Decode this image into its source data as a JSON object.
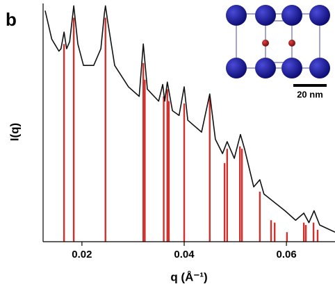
{
  "chart_data": {
    "type": "line",
    "panel_label": "b",
    "y_label": "I(q)",
    "x_label": "q (Å⁻¹)",
    "annotations": [
      "20 nm"
    ],
    "xlim": [
      0.0124,
      0.0695
    ],
    "ylim": [
      0,
      100
    ],
    "xticks": [
      0.02,
      0.04,
      0.06
    ],
    "color": "#111111",
    "x": [
      0.0128,
      0.0141,
      0.0155,
      0.0159,
      0.0165,
      0.017,
      0.0176,
      0.0184,
      0.0192,
      0.0203,
      0.0223,
      0.0237,
      0.0244,
      0.0246,
      0.025,
      0.0264,
      0.0291,
      0.0312,
      0.032,
      0.0328,
      0.035,
      0.0358,
      0.0362,
      0.0367,
      0.0377,
      0.039,
      0.04,
      0.0407,
      0.0434,
      0.045,
      0.0461,
      0.0475,
      0.0484,
      0.0498,
      0.051,
      0.0518,
      0.0536,
      0.0548,
      0.0556,
      0.0597,
      0.0618,
      0.0634,
      0.0644,
      0.0654,
      0.0665,
      0.0695
    ],
    "values": [
      97,
      85,
      80,
      81,
      88,
      81,
      84,
      99,
      83,
      74,
      74,
      81,
      96,
      99,
      93,
      74,
      65,
      61,
      83,
      64,
      59,
      66,
      59,
      67,
      55,
      53,
      65,
      51,
      46,
      62,
      43,
      37,
      42,
      35,
      45,
      39,
      23,
      26,
      20,
      13,
      9,
      12,
      8,
      13,
      7,
      4
    ],
    "peaks": {
      "color": "#d0312d",
      "x": [
        0.0165,
        0.0184,
        0.0246,
        0.032,
        0.0323,
        0.036,
        0.0367,
        0.037,
        0.04,
        0.045,
        0.0479,
        0.0484,
        0.0509,
        0.0513,
        0.0548,
        0.057,
        0.0577,
        0.0601,
        0.0634,
        0.0638,
        0.0653,
        0.0661
      ],
      "values": [
        83,
        94,
        94,
        75,
        68,
        61,
        64,
        59,
        58,
        61,
        33,
        39,
        40,
        39,
        21,
        9,
        8,
        4,
        8,
        7,
        8,
        5
      ]
    }
  }
}
